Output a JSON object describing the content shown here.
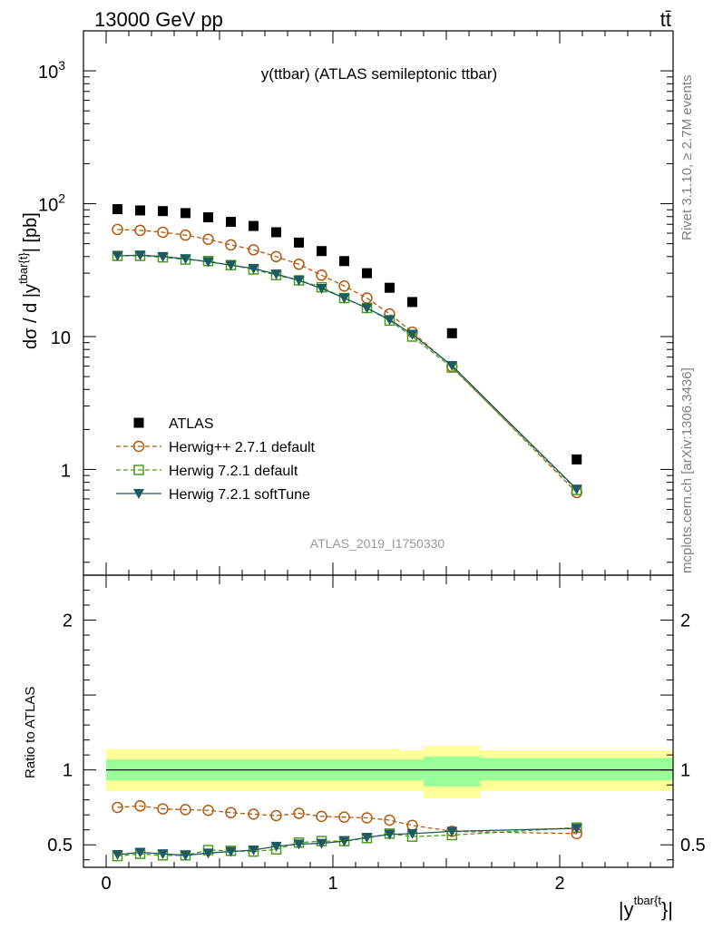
{
  "header": {
    "left": "13000 GeV pp",
    "right": "tt̄"
  },
  "side_labels": {
    "rivet": "Rivet 3.1.10, ≥ 2.7M events",
    "mcplots": "mcplots.cern.ch [arXiv:1306.3436]"
  },
  "chart_data": [
    {
      "type": "scatter",
      "title": "y(ttbar) (ATLAS semileptonic ttbar)",
      "ylabel": "dσ / d |y",
      "ylabel_sup": "tbar{t}",
      "ylabel_tail": "| [pb]",
      "yscale": "log",
      "ylim": [
        0.16,
        2000
      ],
      "xlim": [
        -0.1,
        2.5
      ],
      "watermark": "ATLAS_2019_I1750330",
      "y_ticks": [
        {
          "value": 1,
          "label": "1"
        },
        {
          "value": 10,
          "label": "10"
        },
        {
          "value": 100,
          "label": "10",
          "exp": "2"
        },
        {
          "value": 1000,
          "label": "10",
          "exp": "3"
        }
      ],
      "legend_position": "center-left",
      "series": [
        {
          "name": "ATLAS",
          "color": "#000000",
          "marker": "filled-square",
          "x": [
            0.05,
            0.15,
            0.25,
            0.35,
            0.45,
            0.55,
            0.65,
            0.75,
            0.85,
            0.95,
            1.05,
            1.15,
            1.25,
            1.35,
            1.525,
            2.075
          ],
          "y": [
            91,
            89,
            88,
            85,
            79,
            73,
            68,
            61,
            51,
            44,
            37,
            30,
            23.3,
            18.2,
            10.6,
            1.19
          ]
        },
        {
          "name": "Herwig++ 2.7.1 default",
          "color": "#b35a0f",
          "marker": "open-circle",
          "line": "dashed",
          "x": [
            0.05,
            0.15,
            0.25,
            0.35,
            0.45,
            0.55,
            0.65,
            0.75,
            0.85,
            0.95,
            1.05,
            1.15,
            1.25,
            1.35,
            1.525,
            2.075
          ],
          "y": [
            64,
            63,
            61,
            58,
            54,
            49,
            45,
            40,
            35,
            29,
            24,
            19.5,
            14.8,
            10.8,
            5.95,
            0.67
          ]
        },
        {
          "name": "Herwig 7.2.1 default",
          "color": "#4e9a1b",
          "marker": "open-square",
          "line": "dashed",
          "x": [
            0.05,
            0.15,
            0.25,
            0.35,
            0.45,
            0.55,
            0.65,
            0.75,
            0.85,
            0.95,
            1.05,
            1.15,
            1.25,
            1.35,
            1.525,
            2.075
          ],
          "y": [
            40.5,
            40.5,
            39.5,
            38.0,
            37.0,
            34.5,
            32.0,
            29.0,
            26.5,
            23.5,
            19.5,
            16.4,
            13.2,
            10.0,
            5.85,
            0.7
          ]
        },
        {
          "name": "Herwig 7.2.1 softTune",
          "color": "#1d5a64",
          "marker": "filled-triangle-down",
          "line": "solid",
          "x": [
            0.05,
            0.15,
            0.25,
            0.35,
            0.45,
            0.55,
            0.65,
            0.75,
            0.85,
            0.95,
            1.05,
            1.15,
            1.25,
            1.35,
            1.525,
            2.075
          ],
          "y": [
            40.5,
            41.0,
            40.0,
            38.5,
            36.5,
            34.5,
            32.5,
            29.5,
            26.5,
            23.0,
            19.5,
            16.4,
            13.4,
            10.4,
            6.05,
            0.71
          ]
        }
      ]
    },
    {
      "type": "scatter",
      "ylabel": "Ratio to ATLAS",
      "xlabel": "|y",
      "xlabel_sup": "tbar{t",
      "xlabel_tail": "}|",
      "ylim": [
        0.35,
        2.3
      ],
      "xlim": [
        -0.1,
        2.5
      ],
      "y_ticks": [
        {
          "value": 0.5,
          "label": "0.5"
        },
        {
          "value": 1,
          "label": "1"
        },
        {
          "value": 2,
          "label": "2"
        }
      ],
      "x_ticks": [
        {
          "value": 0,
          "label": "0"
        },
        {
          "value": 1,
          "label": "1"
        },
        {
          "value": 2,
          "label": "2"
        }
      ],
      "bands": {
        "inner_color": "#99ff99",
        "outer_color": "#ffff99",
        "bins": [
          {
            "x": [
              -0.0,
              1.3
            ],
            "inner": [
              0.93,
              1.07
            ],
            "outer": [
              0.86,
              1.14
            ]
          },
          {
            "x": [
              1.3,
              1.4
            ],
            "inner": [
              0.93,
              1.07
            ],
            "outer": [
              0.86,
              1.13
            ]
          },
          {
            "x": [
              1.4,
              1.65
            ],
            "inner": [
              0.89,
              1.09
            ],
            "outer": [
              0.81,
              1.16
            ]
          },
          {
            "x": [
              1.65,
              2.5
            ],
            "inner": [
              0.93,
              1.08
            ],
            "outer": [
              0.86,
              1.13
            ]
          }
        ]
      },
      "series": [
        {
          "name": "Herwig++ 2.7.1 default",
          "color": "#b35a0f",
          "marker": "open-circle",
          "line": "dashed",
          "x": [
            0.05,
            0.15,
            0.25,
            0.35,
            0.45,
            0.55,
            0.65,
            0.75,
            0.85,
            0.95,
            1.05,
            1.15,
            1.25,
            1.35,
            1.525,
            2.075
          ],
          "y": [
            0.75,
            0.76,
            0.74,
            0.735,
            0.73,
            0.715,
            0.705,
            0.695,
            0.71,
            0.69,
            0.685,
            0.68,
            0.665,
            0.63,
            0.59,
            0.575
          ]
        },
        {
          "name": "Herwig 7.2.1 default",
          "color": "#4e9a1b",
          "marker": "open-square",
          "line": "dashed",
          "x": [
            0.05,
            0.15,
            0.25,
            0.35,
            0.45,
            0.55,
            0.65,
            0.75,
            0.85,
            0.95,
            1.05,
            1.15,
            1.25,
            1.35,
            1.525,
            2.075
          ],
          "y": [
            0.425,
            0.44,
            0.43,
            0.43,
            0.465,
            0.46,
            0.455,
            0.47,
            0.515,
            0.525,
            0.525,
            0.545,
            0.575,
            0.555,
            0.565,
            0.615
          ]
        },
        {
          "name": "Herwig 7.2.1 softTune",
          "color": "#1d5a64",
          "marker": "filled-triangle-down",
          "line": "solid",
          "x": [
            0.05,
            0.15,
            0.25,
            0.35,
            0.45,
            0.55,
            0.65,
            0.75,
            0.85,
            0.95,
            1.05,
            1.15,
            1.25,
            1.35,
            1.525,
            2.075
          ],
          "y": [
            0.435,
            0.45,
            0.44,
            0.43,
            0.445,
            0.455,
            0.465,
            0.49,
            0.505,
            0.51,
            0.525,
            0.55,
            0.57,
            0.575,
            0.59,
            0.61
          ]
        }
      ]
    }
  ]
}
